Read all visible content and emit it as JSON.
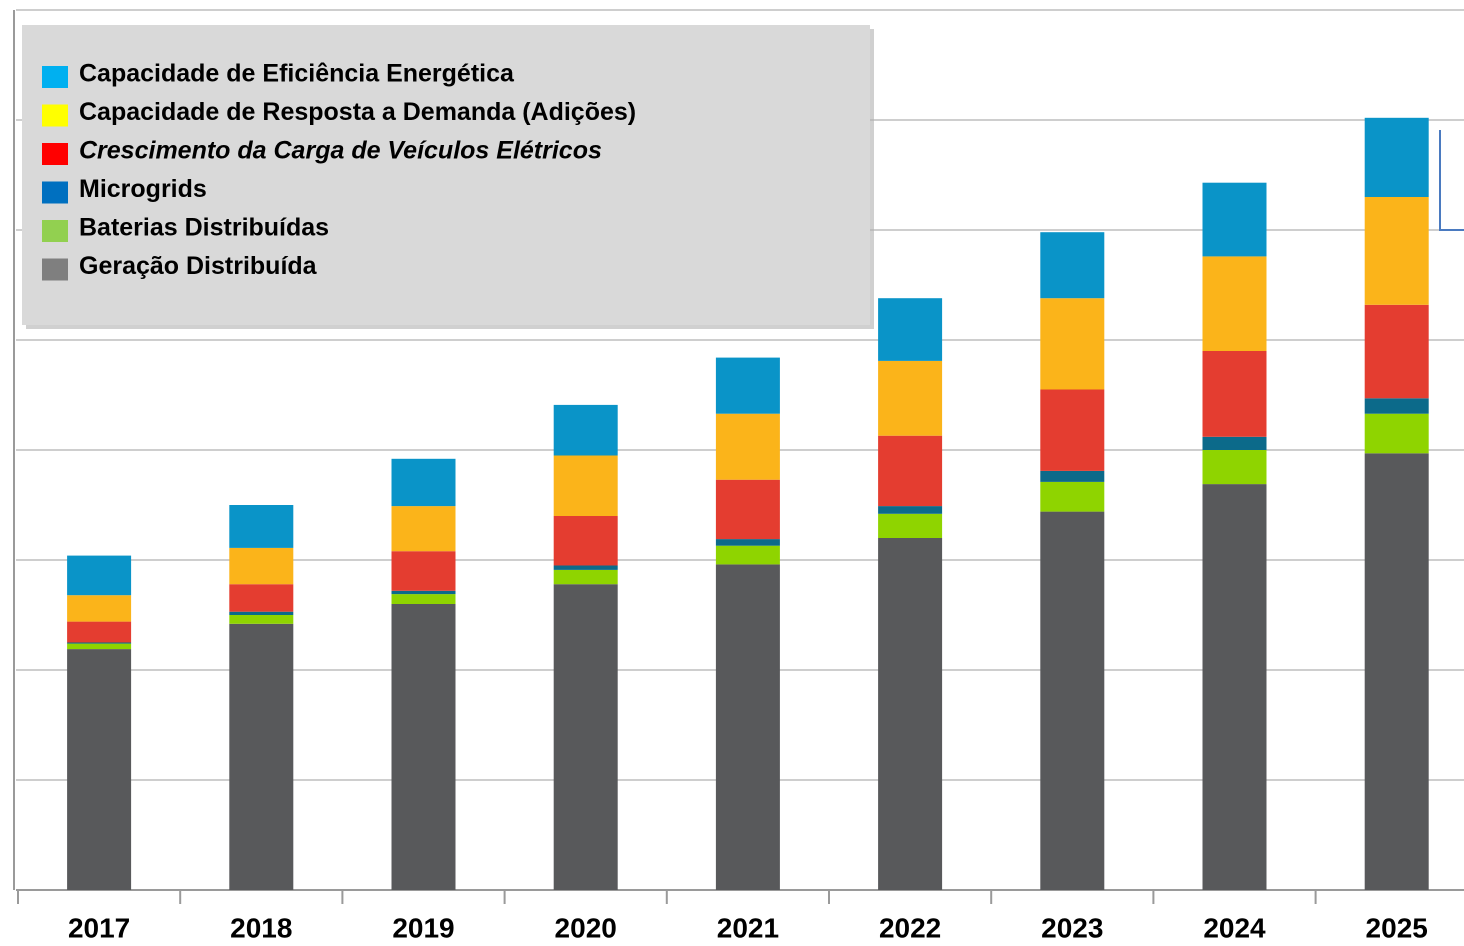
{
  "chart_data": {
    "type": "stacked_bar",
    "categories": [
      "2017",
      "2018",
      "2019",
      "2020",
      "2021",
      "2022",
      "2023",
      "2024",
      "2025"
    ],
    "series": [
      {
        "name": "Geração Distribuída",
        "color": "#58595b",
        "legend_color": "#7f7f7f",
        "values": [
          2.19,
          2.42,
          2.6,
          2.78,
          2.96,
          3.2,
          3.44,
          3.69,
          3.97
        ]
      },
      {
        "name": "Baterias Distribuídas",
        "color": "#8fd400",
        "legend_color": "#92d050",
        "values": [
          0.05,
          0.08,
          0.09,
          0.13,
          0.17,
          0.22,
          0.27,
          0.31,
          0.36
        ]
      },
      {
        "name": "Microgrids",
        "color": "#0c6a8a",
        "legend_color": "#0070c0",
        "values": [
          0.01,
          0.03,
          0.03,
          0.04,
          0.06,
          0.07,
          0.1,
          0.12,
          0.14
        ]
      },
      {
        "name": "Crescimento da Carga de Veículos Elétricos",
        "color": "#e43d30",
        "legend_color": "#ff0000",
        "values": [
          0.19,
          0.25,
          0.36,
          0.45,
          0.54,
          0.64,
          0.74,
          0.78,
          0.85
        ]
      },
      {
        "name": "Capacidade de Resposta a Demanda (Adições)",
        "color": "#fbb41a",
        "legend_color": "#ffff00",
        "values": [
          0.24,
          0.33,
          0.41,
          0.55,
          0.6,
          0.68,
          0.83,
          0.86,
          0.98
        ]
      },
      {
        "name": "Capacidade de Eficiência Energética",
        "color": "#0a94c8",
        "legend_color": "#00b0f0",
        "values": [
          0.36,
          0.39,
          0.43,
          0.46,
          0.51,
          0.57,
          0.6,
          0.67,
          0.72
        ]
      }
    ],
    "ylim": [
      0,
      8
    ],
    "yticks": [
      0,
      1,
      2,
      3,
      4,
      5,
      6,
      7,
      8
    ],
    "grid": true
  }
}
